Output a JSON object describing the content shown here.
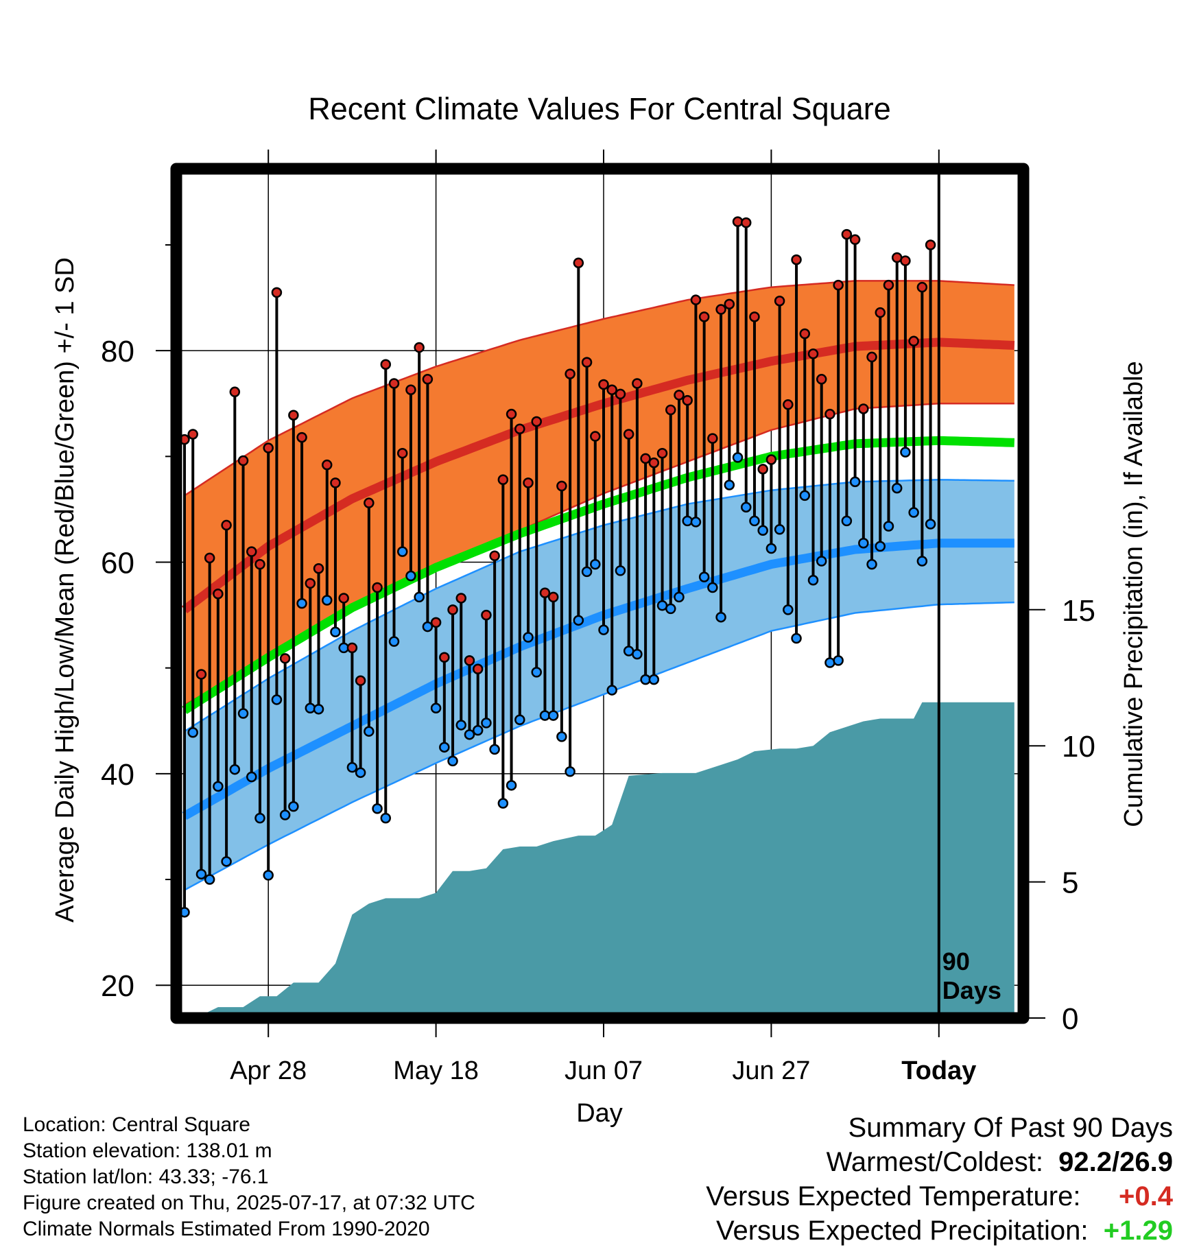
{
  "chart_data": {
    "type": "line",
    "title": "Recent Climate Values For Central Square",
    "xlabel": "Day",
    "ylabel": "Average Daily High/Low/Mean (Red/Blue/Green) +/- 1 SD",
    "y2label": "Cumulative Precipitation (in), If Available",
    "ylim": [
      16.9,
      97.2
    ],
    "y_ticks": [
      "20",
      "40",
      "60",
      "80"
    ],
    "y2lim": [
      0,
      31.2
    ],
    "y2_ticks": [
      "0",
      "5",
      "10",
      "15"
    ],
    "x_ticks": [
      "Apr 28",
      "May 18",
      "Jun 07",
      "Jun 27",
      "Today"
    ],
    "x_tick_days": [
      10,
      30,
      50,
      70,
      90
    ],
    "xlim": [
      0,
      100
    ],
    "today_marker_label": [
      "90",
      "Days"
    ],
    "grid": true,
    "colors": {
      "normal_high_band": "#f47a30",
      "normal_high_line": "#d52b22",
      "normal_mean_line": "#00e000",
      "normal_low_band": "#82c0e8",
      "normal_low_line": "#1e90ff",
      "high_marker": "#d52b22",
      "low_marker": "#1e90ff",
      "precip": "#4a9aa6"
    },
    "normal_high": {
      "day": [
        0,
        10,
        20,
        30,
        40,
        50,
        60,
        70,
        80,
        90,
        99
      ],
      "mean": [
        55.5,
        61.5,
        66.0,
        69.5,
        72.5,
        75.0,
        77.2,
        79.0,
        80.4,
        80.8,
        80.5
      ],
      "upper": [
        66.3,
        71.5,
        75.5,
        78.5,
        81.0,
        83.0,
        84.8,
        86.0,
        86.6,
        86.6,
        86.2
      ],
      "lower": [
        46.5,
        51.0,
        55.5,
        59.5,
        63.0,
        66.5,
        69.5,
        72.5,
        74.5,
        75.0,
        75.0
      ]
    },
    "normal_mean": {
      "day": [
        0,
        10,
        20,
        30,
        40,
        50,
        60,
        70,
        80,
        90,
        99
      ],
      "values": [
        46.0,
        51.0,
        55.7,
        59.5,
        62.7,
        65.5,
        68.0,
        70.0,
        71.2,
        71.5,
        71.3
      ]
    },
    "normal_low": {
      "day": [
        0,
        10,
        20,
        30,
        40,
        50,
        60,
        70,
        80,
        90,
        99
      ],
      "mean": [
        36.0,
        40.5,
        44.5,
        48.5,
        52.0,
        55.0,
        57.5,
        59.8,
        61.2,
        61.8,
        61.8
      ],
      "upper": [
        44.0,
        49.0,
        53.5,
        57.5,
        61.0,
        63.5,
        65.5,
        66.8,
        67.6,
        67.8,
        67.7
      ],
      "lower": [
        29.0,
        33.3,
        37.3,
        41.0,
        44.5,
        47.5,
        50.5,
        53.5,
        55.2,
        56.0,
        56.2
      ]
    },
    "daily_high": [
      71.6,
      72.1,
      49.4,
      60.4,
      57.0,
      63.5,
      76.1,
      69.6,
      61.0,
      59.8,
      70.8,
      85.5,
      50.9,
      73.9,
      71.8,
      58.0,
      59.4,
      69.2,
      67.5,
      56.6,
      51.9,
      48.8,
      65.6,
      57.6,
      78.7,
      76.9,
      70.3,
      76.3,
      80.3,
      77.3,
      54.3,
      51.0,
      55.5,
      56.6,
      50.7,
      49.9,
      55.0,
      60.6,
      67.8,
      74.0,
      72.6,
      67.5,
      73.3,
      57.1,
      56.7,
      67.2,
      77.8,
      88.3,
      78.9,
      71.9,
      76.8,
      76.3,
      75.9,
      72.1,
      76.9,
      69.8,
      69.4,
      70.3,
      74.4,
      75.8,
      75.3,
      84.8,
      83.2,
      71.7,
      83.9,
      84.4,
      92.2,
      92.1,
      83.2,
      68.8,
      69.7,
      84.7,
      74.9,
      88.6,
      81.6,
      79.7,
      77.3,
      74.0,
      86.2,
      91.0,
      90.5,
      74.5,
      79.4,
      83.6,
      86.2,
      88.8,
      88.5,
      80.9,
      86.0,
      90.0
    ],
    "daily_low": [
      26.9,
      43.9,
      30.5,
      30.0,
      38.8,
      31.7,
      40.4,
      45.7,
      39.7,
      35.8,
      30.4,
      47.0,
      36.1,
      36.9,
      56.1,
      46.2,
      46.1,
      56.4,
      53.4,
      51.9,
      40.6,
      40.1,
      44.0,
      36.7,
      35.8,
      52.5,
      61.0,
      58.7,
      56.7,
      53.9,
      46.2,
      42.5,
      41.2,
      44.6,
      43.7,
      44.1,
      44.8,
      42.3,
      37.2,
      38.9,
      45.1,
      52.9,
      49.6,
      45.5,
      45.5,
      43.5,
      40.2,
      54.5,
      59.1,
      59.8,
      53.6,
      47.9,
      59.2,
      51.6,
      51.3,
      48.9,
      48.9,
      55.9,
      55.6,
      56.7,
      63.9,
      63.8,
      58.6,
      57.6,
      54.8,
      67.3,
      69.9,
      65.2,
      63.9,
      63.0,
      61.3,
      63.1,
      55.5,
      52.8,
      66.3,
      58.3,
      60.1,
      50.5,
      50.7,
      63.9,
      67.6,
      61.8,
      59.8,
      61.5,
      63.4,
      67.0,
      70.4,
      64.7,
      60.1,
      63.6
    ],
    "cumulative_precip": {
      "day": [
        0,
        2,
        4,
        7,
        9,
        11,
        13,
        16,
        18,
        20,
        22,
        24,
        26,
        28,
        30,
        32,
        34,
        36,
        38,
        40,
        42,
        44,
        47,
        49,
        51,
        53,
        57,
        61,
        64,
        66,
        68,
        71,
        73,
        75,
        77,
        81,
        83,
        85,
        87,
        88,
        90,
        99
      ],
      "values": [
        0,
        0.1,
        0.4,
        0.4,
        0.8,
        0.8,
        1.3,
        1.3,
        2.0,
        3.8,
        4.2,
        4.4,
        4.4,
        4.4,
        4.6,
        5.4,
        5.4,
        5.5,
        6.2,
        6.3,
        6.3,
        6.5,
        6.7,
        6.7,
        7.1,
        8.9,
        9.0,
        9.0,
        9.3,
        9.5,
        9.8,
        9.9,
        9.9,
        10.0,
        10.5,
        10.9,
        11.0,
        11.0,
        11.0,
        11.6,
        11.6,
        11.6
      ]
    }
  },
  "location": {
    "location_line": "Location: Central Square",
    "elevation_line": "Station elevation: 138.01 m",
    "latlon_line": "Station lat/lon: 43.33; -76.1",
    "created_line": "Figure created on Thu, 2025-07-17, at 07:32 UTC",
    "normals_line": "Climate Normals Estimated From 1990-2020"
  },
  "summary": {
    "heading": "Summary Of Past 90 Days",
    "warmest_coldest_label": "Warmest/Coldest:",
    "warmest_coldest_value": "92.2/26.9",
    "temp_label": "Versus Expected Temperature:",
    "temp_value": "+0.4",
    "temp_color": "#d52b22",
    "precip_label": "Versus Expected Precipitation:",
    "precip_value": "+1.29",
    "precip_color": "#22cc22"
  }
}
